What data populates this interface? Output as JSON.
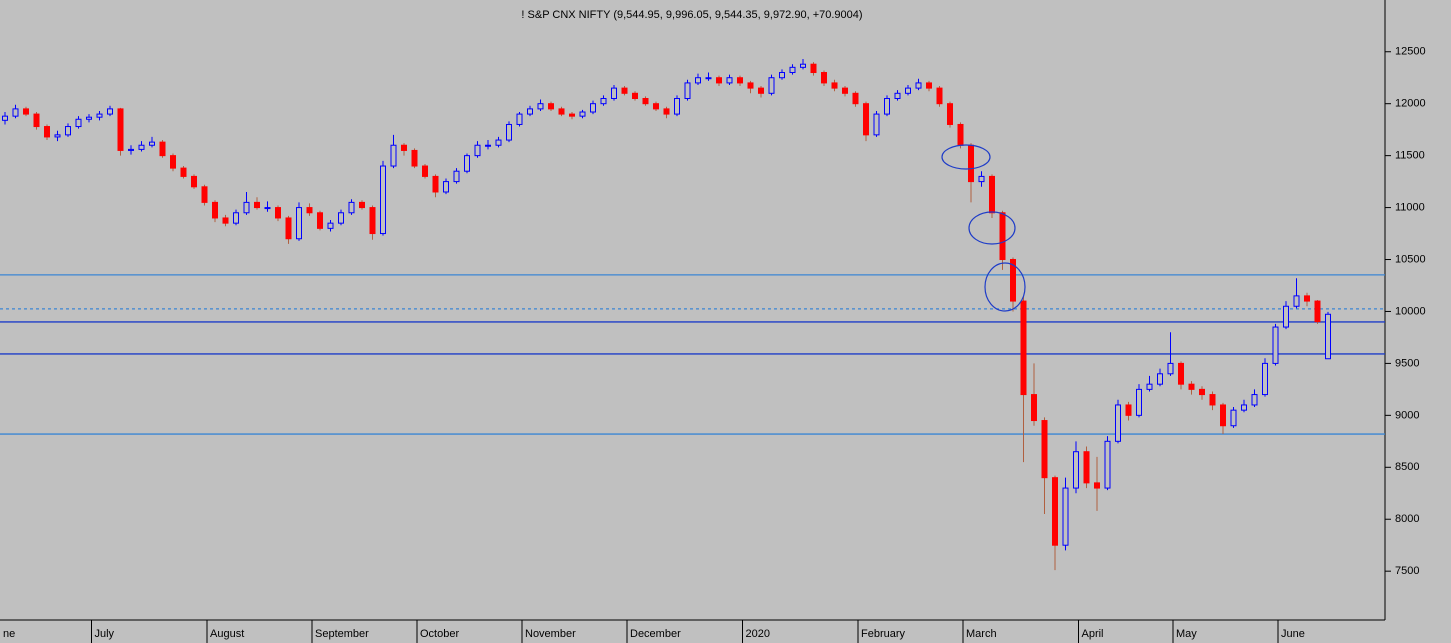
{
  "chart_data": {
    "type": "candlestick",
    "title": "! S&P CNX NIFTY (9,544.95, 9,996.05, 9,544.35, 9,972.90, +70.9004)",
    "up_color": "#0000ff",
    "down_color": "#ff0000",
    "ylim": [
      7030,
      12950
    ],
    "yticks": [
      7500,
      8000,
      8500,
      9000,
      9500,
      10000,
      10500,
      11000,
      11500,
      12000,
      12500
    ],
    "hlines": [
      {
        "value": 10352,
        "color": "#3b86d4",
        "style": "solid"
      },
      {
        "value": 10025,
        "color": "#3b86d4",
        "style": "dotted"
      },
      {
        "value": 9899,
        "color": "#1e3cc8",
        "style": "solid"
      },
      {
        "value": 9591,
        "color": "#1e3cc8",
        "style": "solid"
      },
      {
        "value": 8820,
        "color": "#3b86d4",
        "style": "solid"
      }
    ],
    "categories": [
      "ne",
      null,
      null,
      null,
      null,
      null,
      null,
      null,
      null,
      "July",
      null,
      null,
      null,
      null,
      null,
      null,
      null,
      null,
      null,
      null,
      "August",
      null,
      null,
      null,
      null,
      null,
      null,
      null,
      null,
      null,
      "September",
      null,
      null,
      null,
      null,
      null,
      null,
      null,
      null,
      null,
      "October",
      null,
      null,
      null,
      null,
      null,
      null,
      null,
      null,
      null,
      "November",
      null,
      null,
      null,
      null,
      null,
      null,
      null,
      null,
      null,
      "December",
      null,
      null,
      null,
      null,
      null,
      null,
      null,
      null,
      null,
      null,
      "2020",
      null,
      null,
      null,
      null,
      null,
      null,
      null,
      null,
      null,
      null,
      "February",
      null,
      null,
      null,
      null,
      null,
      null,
      null,
      null,
      null,
      "March",
      null,
      null,
      null,
      null,
      null,
      null,
      null,
      null,
      null,
      null,
      "April",
      null,
      null,
      null,
      null,
      null,
      null,
      null,
      null,
      "May",
      null,
      null,
      null,
      null,
      null,
      null,
      null,
      null,
      null,
      "June",
      null,
      null,
      null,
      null
    ],
    "candles": [
      [
        11840,
        11920,
        11800,
        11880
      ],
      [
        11880,
        11990,
        11860,
        11950
      ],
      [
        11950,
        11970,
        11880,
        11900
      ],
      [
        11900,
        11920,
        11750,
        11780
      ],
      [
        11780,
        11800,
        11650,
        11680
      ],
      [
        11680,
        11740,
        11640,
        11700
      ],
      [
        11700,
        11810,
        11680,
        11780
      ],
      [
        11780,
        11880,
        11760,
        11850
      ],
      [
        11850,
        11900,
        11820,
        11870
      ],
      [
        11870,
        11930,
        11840,
        11900
      ],
      [
        11900,
        11980,
        11880,
        11950
      ],
      [
        11950,
        11960,
        11500,
        11550
      ],
      [
        11550,
        11600,
        11510,
        11560
      ],
      [
        11560,
        11640,
        11540,
        11600
      ],
      [
        11600,
        11680,
        11580,
        11630
      ],
      [
        11630,
        11650,
        11480,
        11500
      ],
      [
        11500,
        11520,
        11350,
        11380
      ],
      [
        11380,
        11400,
        11280,
        11300
      ],
      [
        11300,
        11320,
        11180,
        11200
      ],
      [
        11200,
        11220,
        11020,
        11050
      ],
      [
        11050,
        11070,
        10860,
        10900
      ],
      [
        10900,
        10930,
        10820,
        10850
      ],
      [
        10850,
        10980,
        10830,
        10950
      ],
      [
        10950,
        11150,
        10930,
        11050
      ],
      [
        11050,
        11100,
        10980,
        11000
      ],
      [
        11000,
        11060,
        10960,
        11000
      ],
      [
        11000,
        11020,
        10870,
        10900
      ],
      [
        10900,
        10920,
        10650,
        10700
      ],
      [
        10700,
        11050,
        10680,
        11000
      ],
      [
        11000,
        11040,
        10920,
        10950
      ],
      [
        10950,
        10970,
        10780,
        10800
      ],
      [
        10800,
        10880,
        10770,
        10850
      ],
      [
        10850,
        10980,
        10830,
        10950
      ],
      [
        10950,
        11080,
        10930,
        11050
      ],
      [
        11050,
        11070,
        10980,
        11000
      ],
      [
        11000,
        11020,
        10690,
        10750
      ],
      [
        10750,
        11450,
        10730,
        11400
      ],
      [
        11400,
        11700,
        11380,
        11600
      ],
      [
        11600,
        11620,
        11500,
        11550
      ],
      [
        11550,
        11570,
        11380,
        11400
      ],
      [
        11400,
        11420,
        11280,
        11300
      ],
      [
        11300,
        11320,
        11100,
        11150
      ],
      [
        11150,
        11280,
        11130,
        11250
      ],
      [
        11250,
        11380,
        11230,
        11350
      ],
      [
        11350,
        11520,
        11330,
        11500
      ],
      [
        11500,
        11640,
        11480,
        11600
      ],
      [
        11600,
        11650,
        11560,
        11600
      ],
      [
        11600,
        11680,
        11580,
        11650
      ],
      [
        11650,
        11830,
        11630,
        11800
      ],
      [
        11800,
        11920,
        11780,
        11900
      ],
      [
        11900,
        11980,
        11880,
        11950
      ],
      [
        11950,
        12040,
        11930,
        12000
      ],
      [
        12000,
        12020,
        11930,
        11950
      ],
      [
        11950,
        11970,
        11880,
        11900
      ],
      [
        11900,
        11920,
        11850,
        11880
      ],
      [
        11880,
        11940,
        11860,
        11920
      ],
      [
        11920,
        12030,
        11900,
        12000
      ],
      [
        12000,
        12080,
        11980,
        12050
      ],
      [
        12050,
        12180,
        12030,
        12150
      ],
      [
        12150,
        12170,
        12080,
        12100
      ],
      [
        12100,
        12120,
        12030,
        12050
      ],
      [
        12050,
        12070,
        11980,
        12000
      ],
      [
        12000,
        12020,
        11930,
        11950
      ],
      [
        11950,
        11970,
        11860,
        11900
      ],
      [
        11900,
        12080,
        11880,
        12050
      ],
      [
        12050,
        12230,
        12030,
        12200
      ],
      [
        12200,
        12290,
        12180,
        12250
      ],
      [
        12250,
        12300,
        12220,
        12250
      ],
      [
        12250,
        12270,
        12170,
        12200
      ],
      [
        12200,
        12280,
        12180,
        12250
      ],
      [
        12250,
        12270,
        12170,
        12200
      ],
      [
        12200,
        12220,
        12100,
        12150
      ],
      [
        12150,
        12170,
        12060,
        12100
      ],
      [
        12100,
        12280,
        12080,
        12250
      ],
      [
        12250,
        12330,
        12230,
        12300
      ],
      [
        12300,
        12380,
        12280,
        12350
      ],
      [
        12350,
        12430,
        12330,
        12380
      ],
      [
        12380,
        12400,
        12270,
        12300
      ],
      [
        12300,
        12320,
        12170,
        12200
      ],
      [
        12200,
        12230,
        12120,
        12150
      ],
      [
        12150,
        12170,
        12070,
        12100
      ],
      [
        12100,
        12120,
        11970,
        12000
      ],
      [
        12000,
        12020,
        11640,
        11700
      ],
      [
        11700,
        11930,
        11680,
        11900
      ],
      [
        11900,
        12080,
        11880,
        12050
      ],
      [
        12050,
        12130,
        12030,
        12100
      ],
      [
        12100,
        12180,
        12080,
        12150
      ],
      [
        12150,
        12240,
        12130,
        12200
      ],
      [
        12200,
        12220,
        12120,
        12150
      ],
      [
        12150,
        12170,
        11970,
        12000
      ],
      [
        12000,
        12020,
        11770,
        11800
      ],
      [
        11800,
        11820,
        11570,
        11600
      ],
      [
        11600,
        11620,
        11050,
        11250
      ],
      [
        11250,
        11350,
        11200,
        11300
      ],
      [
        11300,
        11320,
        10900,
        10950
      ],
      [
        10950,
        10970,
        10400,
        10500
      ],
      [
        10500,
        10520,
        10000,
        10100
      ],
      [
        10100,
        10150,
        8550,
        9200
      ],
      [
        9200,
        9500,
        8900,
        8950
      ],
      [
        8950,
        8980,
        8050,
        8400
      ],
      [
        8400,
        8420,
        7510,
        7750
      ],
      [
        7750,
        8400,
        7700,
        8300
      ],
      [
        8300,
        8750,
        8250,
        8650
      ],
      [
        8650,
        8700,
        8300,
        8350
      ],
      [
        8350,
        8600,
        8080,
        8300
      ],
      [
        8300,
        8800,
        8280,
        8750
      ],
      [
        8750,
        9150,
        8730,
        9100
      ],
      [
        9100,
        9130,
        8950,
        9000
      ],
      [
        9000,
        9300,
        8980,
        9250
      ],
      [
        9250,
        9380,
        9230,
        9300
      ],
      [
        9300,
        9450,
        9280,
        9400
      ],
      [
        9400,
        9800,
        9380,
        9500
      ],
      [
        9500,
        9520,
        9250,
        9300
      ],
      [
        9300,
        9330,
        9200,
        9250
      ],
      [
        9250,
        9280,
        9150,
        9200
      ],
      [
        9200,
        9230,
        9050,
        9100
      ],
      [
        9100,
        9120,
        8820,
        8900
      ],
      [
        8900,
        9080,
        8880,
        9050
      ],
      [
        9050,
        9150,
        9030,
        9100
      ],
      [
        9100,
        9250,
        9080,
        9200
      ],
      [
        9200,
        9550,
        9180,
        9500
      ],
      [
        9500,
        9880,
        9480,
        9850
      ],
      [
        9850,
        10100,
        9830,
        10050
      ],
      [
        10050,
        10320,
        10030,
        10150
      ],
      [
        10150,
        10180,
        10050,
        10100
      ],
      [
        10100,
        10110,
        9880,
        9902
      ],
      [
        9544.95,
        9996.05,
        9544.35,
        9972.9
      ]
    ]
  }
}
